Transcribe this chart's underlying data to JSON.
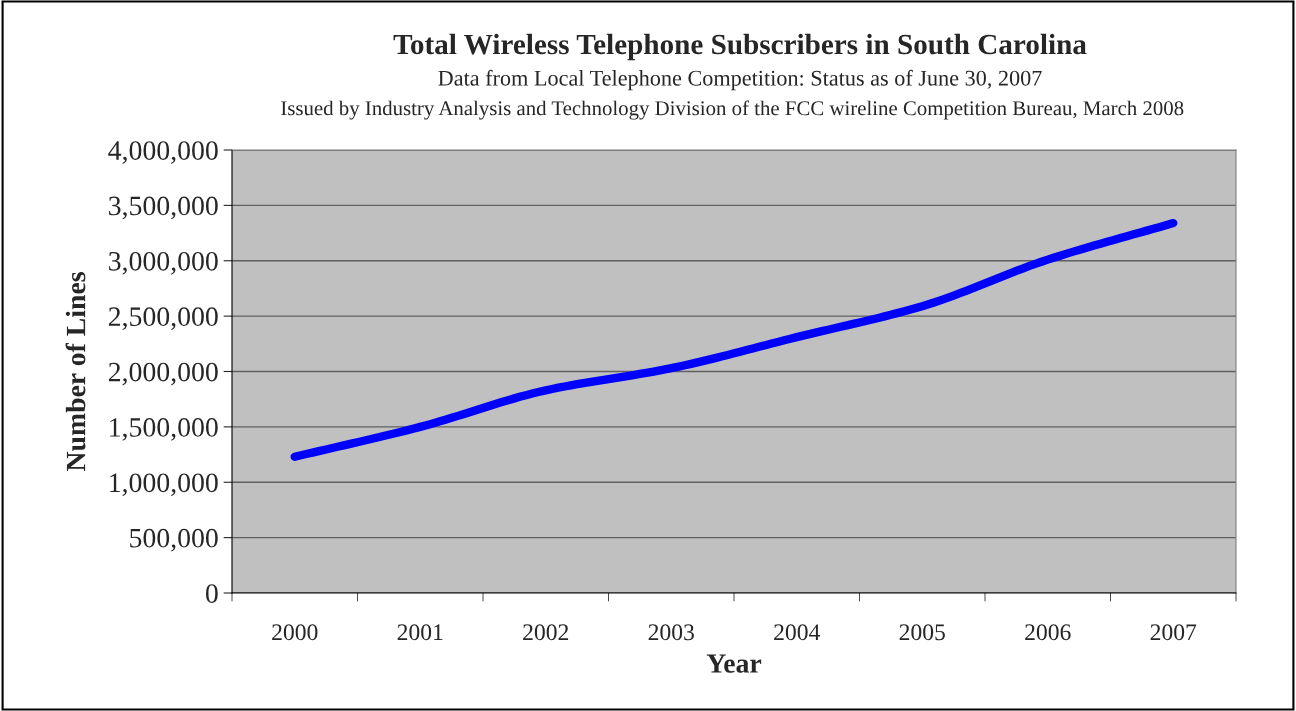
{
  "chart_data": {
    "type": "line",
    "title": "Total Wireless Telephone Subscribers in South Carolina",
    "subtitle": "Data from Local Telephone Competition: Status as of June 30, 2007",
    "annotations": [
      "Issued by Industry Analysis and Technology Division of the FCC wireline Competition Bureau, March 2008"
    ],
    "xlabel": "Year",
    "ylabel": "Number of Lines",
    "categories": [
      "2000",
      "2001",
      "2002",
      "2003",
      "2004",
      "2005",
      "2006",
      "2007"
    ],
    "series": [
      {
        "color": "#0000ff",
        "values": [
          1230000,
          1500000,
          1830000,
          2030000,
          2310000,
          2590000,
          3010000,
          3340000
        ]
      }
    ],
    "ylim": [
      0,
      4000000
    ],
    "yticks": [
      0,
      {
        "value": 500000,
        "label": "500,000"
      },
      {
        "value": 1000000,
        "label": "1,000,000"
      },
      {
        "value": 1500000,
        "label": "1,500,000"
      },
      {
        "value": 2000000,
        "label": "2,000,000"
      },
      {
        "value": 2500000,
        "label": "2,500,000"
      },
      {
        "value": 3000000,
        "label": "3,000,000"
      },
      {
        "value": 3500000,
        "label": "3,500,000"
      },
      {
        "value": 4000000,
        "label": "4,000,000"
      }
    ],
    "grid": "y",
    "legend": false,
    "marker": "none",
    "line_style": "solid"
  }
}
